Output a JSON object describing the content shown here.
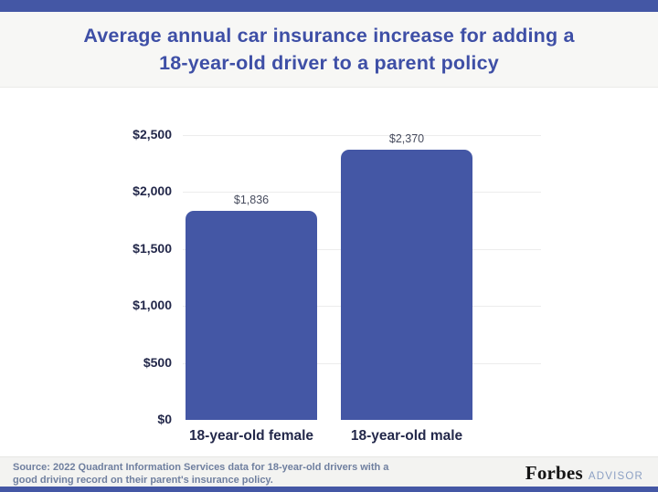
{
  "accent_color": "#4457a5",
  "header": {
    "title_line1": "Average annual car insurance increase for adding a",
    "title_line2": "18-year-old driver to a parent policy"
  },
  "chart_data": {
    "type": "bar",
    "title": "Average annual car insurance increase for adding a 18-year-old driver to a parent policy",
    "categories": [
      "18-year-old female",
      "18-year-old male"
    ],
    "values": [
      1836,
      2370
    ],
    "value_labels": [
      "$1,836",
      "$2,370"
    ],
    "xlabel": "",
    "ylabel": "",
    "ylim": [
      0,
      2500
    ],
    "y_tick_values": [
      0,
      500,
      1000,
      1500,
      2000,
      2500
    ],
    "y_tick_labels": [
      "$0",
      "$500",
      "$1,000",
      "$1,500",
      "$2,000",
      "$2,500"
    ],
    "grid": "horizontal",
    "legend": "none",
    "bar_color": "#4457a5"
  },
  "footer": {
    "source_line1": "Source: 2022 Quadrant Information Services data for 18-year-old drivers with a",
    "source_line2": "good driving record on their parent's insurance policy.",
    "brand": "Forbes",
    "brand_suffix": "ADVISOR"
  }
}
